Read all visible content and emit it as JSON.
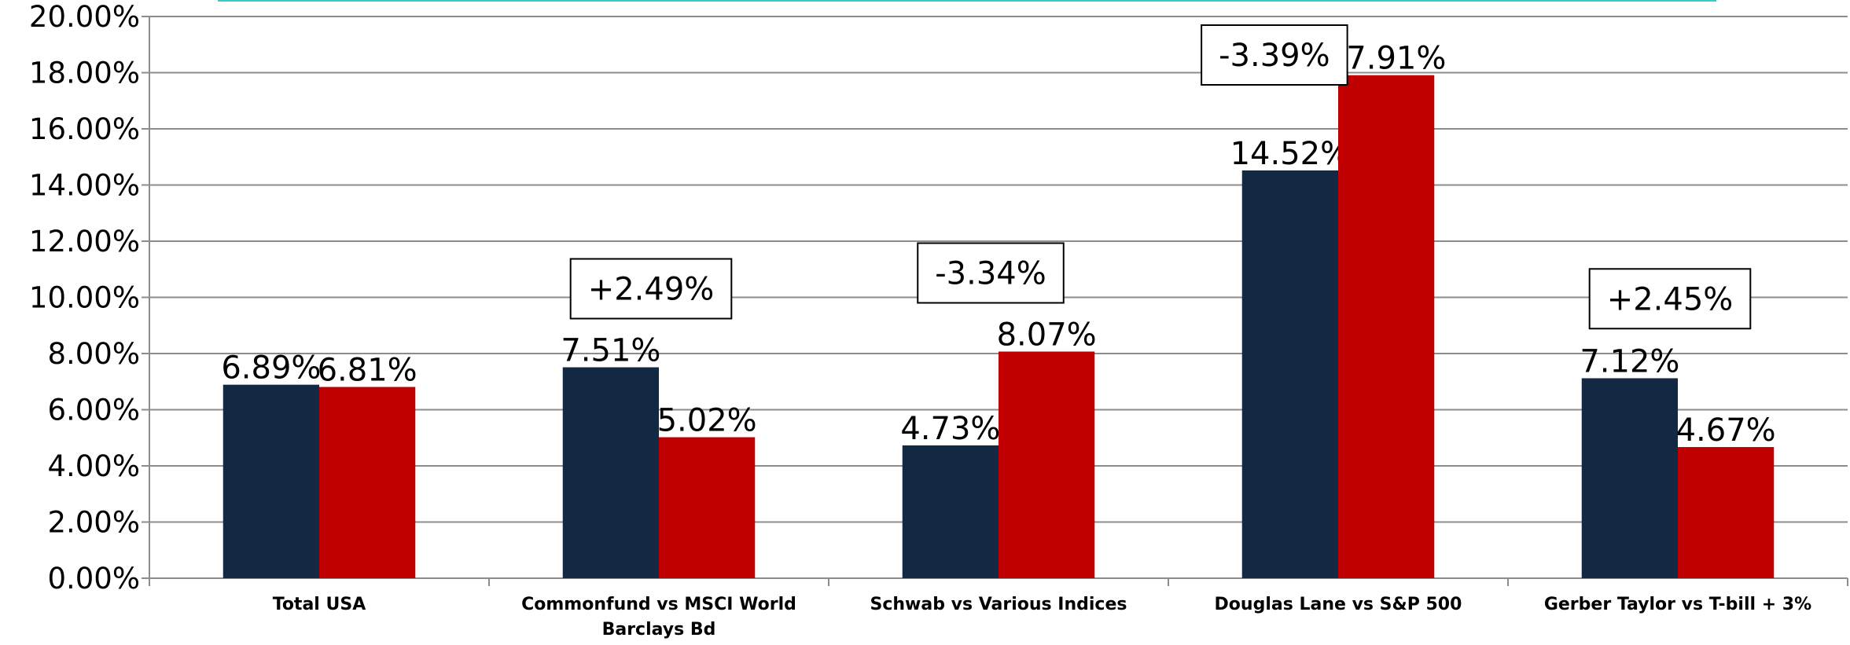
{
  "chart_data": {
    "type": "bar",
    "categories": [
      "Total USA",
      "Commonfund vs MSCI World Barclays Bd",
      "Schwab vs Various Indices",
      "Douglas Lane vs S&P 500",
      "Gerber Taylor vs T-bill + 3%"
    ],
    "series": [
      {
        "color": "#132843",
        "values": [
          6.89,
          7.51,
          4.73,
          14.52,
          7.12
        ],
        "value_labels": [
          "6.89%",
          "7.51%",
          "4.73%",
          "14.52%",
          "7.12%"
        ]
      },
      {
        "color": "#c00000",
        "values": [
          6.81,
          5.02,
          8.07,
          17.91,
          4.67
        ],
        "value_labels": [
          "6.81%",
          "5.02%",
          "8.07%",
          "17.91%",
          "4.67%"
        ]
      }
    ],
    "annotations": [
      null,
      "+2.49%",
      "-3.34%",
      "-3.39%",
      "+2.45%"
    ],
    "ylim": [
      0,
      20
    ],
    "yticks": [
      {
        "value": 0,
        "label": "0.00%"
      },
      {
        "value": 2,
        "label": "2.00%"
      },
      {
        "value": 4,
        "label": "4.00%"
      },
      {
        "value": 6,
        "label": "6.00%"
      },
      {
        "value": 8,
        "label": "8.00%"
      },
      {
        "value": 10,
        "label": "10.00%"
      },
      {
        "value": 12,
        "label": "12.00%"
      },
      {
        "value": 14,
        "label": "14.00%"
      },
      {
        "value": 16,
        "label": "16.00%"
      },
      {
        "value": 18,
        "label": "18.00%"
      },
      {
        "value": 20,
        "label": "20.00%"
      }
    ],
    "grid": true
  }
}
